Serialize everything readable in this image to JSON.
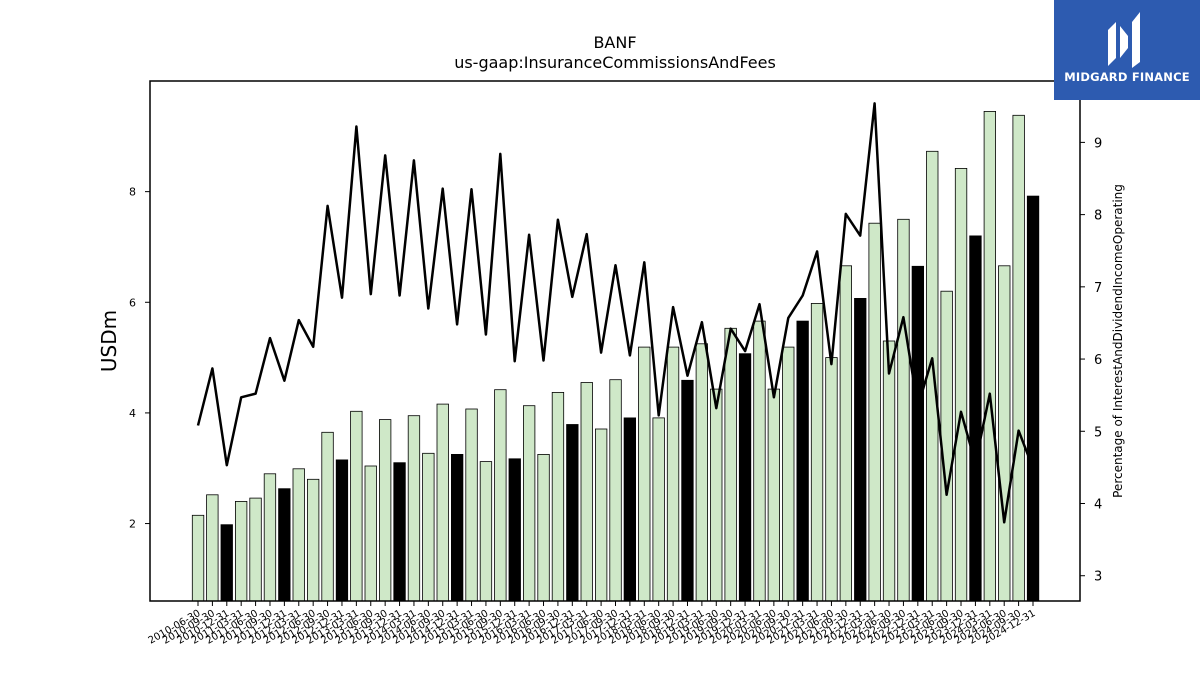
{
  "chart_data": {
    "type": "bar+line",
    "title": "BANF",
    "subtitle": "us-gaap:InsuranceCommissionsAndFees",
    "ylabel_left": "USDm",
    "ylabel_right": "Percentage of InterestAndDividendIncomeOperating",
    "ylim_left": [
      0.6,
      10
    ],
    "ylim_right": [
      2.65,
      9.85
    ],
    "yticks_left": [
      2,
      4,
      6,
      8
    ],
    "yticks_right": [
      3,
      4,
      5,
      6,
      7,
      8,
      9
    ],
    "categories": [
      "2010-06-30",
      "2010-09-30",
      "2010-12-31",
      "2011-03-31",
      "2011-06-30",
      "2011-09-30",
      "2011-12-31",
      "2012-03-31",
      "2012-06-30",
      "2012-09-30",
      "2012-12-31",
      "2013-03-31",
      "2013-06-30",
      "2013-09-30",
      "2013-12-31",
      "2014-03-31",
      "2014-06-30",
      "2014-09-30",
      "2014-12-31",
      "2015-03-31",
      "2015-06-30",
      "2015-09-30",
      "2015-12-31",
      "2016-03-31",
      "2016-06-30",
      "2016-09-30",
      "2016-12-31",
      "2017-03-31",
      "2017-06-30",
      "2017-09-30",
      "2017-12-31",
      "2018-03-31",
      "2018-06-30",
      "2018-09-30",
      "2018-12-31",
      "2019-03-31",
      "2019-06-30",
      "2019-09-30",
      "2019-12-31",
      "2020-03-31",
      "2020-06-30",
      "2020-09-30",
      "2020-12-31",
      "2021-03-31",
      "2021-06-30",
      "2021-09-30",
      "2021-12-31",
      "2022-03-31",
      "2022-06-30",
      "2022-09-30",
      "2022-12-31",
      "2023-03-31",
      "2023-06-30",
      "2023-09-30",
      "2023-12-31",
      "2024-03-31",
      "2024-06-30",
      "2024-09-30",
      "2024-12-31"
    ],
    "series": [
      {
        "kind": "bar",
        "values": [
          2.15,
          2.52,
          1.98,
          2.4,
          2.46,
          2.9,
          2.63,
          2.99,
          2.8,
          3.65,
          3.15,
          4.03,
          3.04,
          3.88,
          3.1,
          3.95,
          3.27,
          4.16,
          3.25,
          4.07,
          3.12,
          4.42,
          3.17,
          4.13,
          3.25,
          4.37,
          3.79,
          4.55,
          3.71,
          4.6,
          3.91,
          5.19,
          3.91,
          5.19,
          4.59,
          5.25,
          4.43,
          5.53,
          5.07,
          5.66,
          4.43,
          5.19,
          5.66,
          5.98,
          5.0,
          6.66,
          6.07,
          7.43,
          5.3,
          7.5,
          6.65,
          8.73,
          6.2,
          8.42,
          7.2,
          9.45,
          6.66,
          9.38,
          7.92
        ],
        "highlight_color": "#000000",
        "normal_color": "#cfe8c8",
        "highlight_every_nth_from_index": [
          2,
          4
        ]
      },
      {
        "kind": "line",
        "axis": "right",
        "color": "#000000",
        "values": [
          5.08,
          5.87,
          4.53,
          5.47,
          5.52,
          6.29,
          5.7,
          6.54,
          6.17,
          8.12,
          6.85,
          9.22,
          6.9,
          8.82,
          6.88,
          8.75,
          6.7,
          8.36,
          6.48,
          8.35,
          6.34,
          8.84,
          5.97,
          7.72,
          5.98,
          7.93,
          6.86,
          7.73,
          6.09,
          7.3,
          6.05,
          7.34,
          5.22,
          6.72,
          5.77,
          6.51,
          5.32,
          6.42,
          6.11,
          6.76,
          5.47,
          6.57,
          6.88,
          7.49,
          5.93,
          8.01,
          7.71,
          9.54,
          5.8,
          6.58,
          5.34,
          6.01,
          4.12,
          5.27,
          4.56,
          5.52,
          3.74,
          5.01,
          4.49
        ]
      }
    ]
  },
  "logo": {
    "text": "MIDGARD FINANCE",
    "background": "#2d5bb0"
  }
}
